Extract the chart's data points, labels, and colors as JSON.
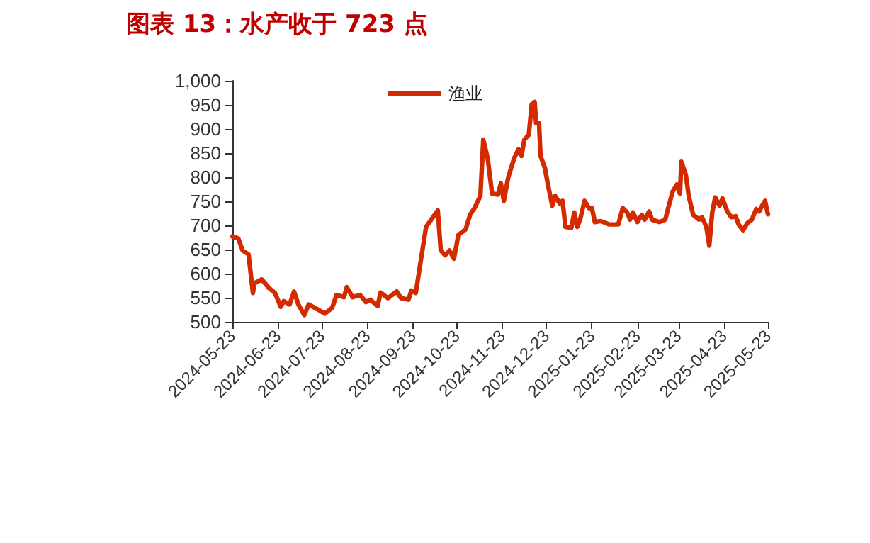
{
  "chart_data": {
    "type": "line",
    "title": "图表 13：水产收于 723 点",
    "legend": "top",
    "grid": false,
    "marker": "none",
    "xlim": [
      "2024-05-23",
      "2025-05-23"
    ],
    "xticks": [
      "2024-05-23",
      "2024-06-23",
      "2024-07-23",
      "2024-08-23",
      "2024-09-23",
      "2024-10-23",
      "2024-11-23",
      "2024-12-23",
      "2025-01-23",
      "2025-02-23",
      "2025-03-23",
      "2025-04-23",
      "2025-05-23"
    ],
    "ylim": [
      500,
      1000
    ],
    "yticks": [
      500,
      550,
      600,
      650,
      700,
      750,
      800,
      850,
      900,
      950,
      {
        "value": 1000,
        "label": "1,000"
      }
    ],
    "x": [
      "2024-05-23",
      "2024-05-27",
      "2024-05-30",
      "2024-06-03",
      "2024-06-06",
      "2024-06-07",
      "2024-06-12",
      "2024-06-17",
      "2024-06-21",
      "2024-06-25",
      "2024-06-27",
      "2024-07-01",
      "2024-07-04",
      "2024-07-07",
      "2024-07-11",
      "2024-07-14",
      "2024-07-20",
      "2024-07-25",
      "2024-07-30",
      "2024-08-02",
      "2024-08-07",
      "2024-08-09",
      "2024-08-13",
      "2024-08-18",
      "2024-08-22",
      "2024-08-25",
      "2024-08-30",
      "2024-09-01",
      "2024-09-06",
      "2024-09-12",
      "2024-09-15",
      "2024-09-20",
      "2024-09-22",
      "2024-09-25",
      "2024-09-28",
      "2024-10-02",
      "2024-10-10",
      "2024-10-12",
      "2024-10-15",
      "2024-10-18",
      "2024-10-21",
      "2024-10-24",
      "2024-10-29",
      "2024-11-01",
      "2024-11-04",
      "2024-11-08",
      "2024-11-10",
      "2024-11-13",
      "2024-11-16",
      "2024-11-20",
      "2024-11-22",
      "2024-11-24",
      "2024-11-27",
      "2024-12-01",
      "2024-12-04",
      "2024-12-06",
      "2024-12-08",
      "2024-12-11",
      "2024-12-13",
      "2024-12-15",
      "2024-12-16",
      "2024-12-18",
      "2024-12-19",
      "2024-12-22",
      "2024-12-24",
      "2024-12-27",
      "2024-12-29",
      "2025-01-01",
      "2025-01-03",
      "2025-01-05",
      "2025-01-09",
      "2025-01-11",
      "2025-01-13",
      "2025-01-15",
      "2025-01-18",
      "2025-01-21",
      "2025-01-23",
      "2025-01-25",
      "2025-01-29",
      "2025-02-04",
      "2025-02-10",
      "2025-02-13",
      "2025-02-16",
      "2025-02-18",
      "2025-02-20",
      "2025-02-23",
      "2025-02-26",
      "2025-02-28",
      "2025-03-03",
      "2025-03-05",
      "2025-03-10",
      "2025-03-14",
      "2025-03-16",
      "2025-03-19",
      "2025-03-22",
      "2025-03-24",
      "2025-03-25",
      "2025-03-28",
      "2025-03-30",
      "2025-04-02",
      "2025-04-06",
      "2025-04-08",
      "2025-04-11",
      "2025-04-13",
      "2025-04-15",
      "2025-04-17",
      "2025-04-20",
      "2025-04-22",
      "2025-04-25",
      "2025-04-28",
      "2025-05-01",
      "2025-05-03",
      "2025-05-06",
      "2025-05-09",
      "2025-05-12",
      "2025-05-15",
      "2025-05-17",
      "2025-05-19",
      "2025-05-21",
      "2025-05-23"
    ],
    "series": [
      {
        "name": "渔业",
        "color": "#d42a00",
        "values": [
          677,
          673,
          648,
          640,
          560,
          580,
          588,
          570,
          560,
          531,
          543,
          536,
          563,
          536,
          514,
          536,
          526,
          517,
          529,
          556,
          551,
          572,
          551,
          556,
          541,
          546,
          533,
          561,
          549,
          563,
          549,
          546,
          565,
          560,
          619,
          697,
          731,
          648,
          638,
          648,
          631,
          680,
          692,
          722,
          736,
          761,
          878,
          839,
          766,
          764,
          787,
          751,
          800,
          839,
          858,
          844,
          878,
          888,
          951,
          956,
          912,
          912,
          844,
          819,
          785,
          741,
          761,
          746,
          751,
          697,
          695,
          727,
          697,
          712,
          751,
          736,
          736,
          707,
          709,
          702,
          702,
          736,
          727,
          712,
          727,
          707,
          722,
          712,
          729,
          712,
          707,
          712,
          736,
          770,
          785,
          766,
          832,
          805,
          761,
          722,
          712,
          717,
          697,
          658,
          727,
          758,
          741,
          756,
          731,
          717,
          719,
          702,
          690,
          705,
          712,
          734,
          729,
          741,
          751,
          723
        ]
      }
    ]
  }
}
